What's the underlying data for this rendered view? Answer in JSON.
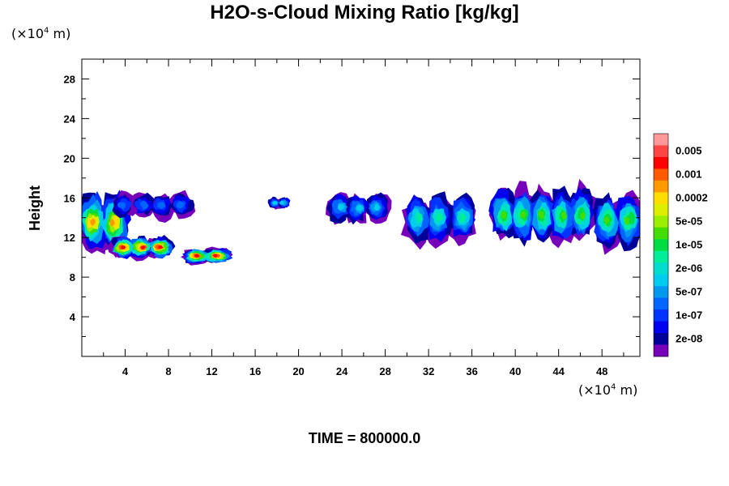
{
  "title": "H2O-s-Cloud Mixing Ratio [kg/kg]",
  "time_label": "TIME = 800000.0",
  "unit_prefix": "(×10",
  "unit_exp": "4",
  "unit_suffix": " m)",
  "chart_data": {
    "type": "heatmap",
    "title": "H2O-s-Cloud Mixing Ratio [kg/kg]",
    "xlabel": "",
    "ylabel": "Height",
    "x_unit": "(×10^4 m)",
    "y_unit": "(×10^4 m)",
    "xlim": [
      0,
      51.5
    ],
    "ylim": [
      0,
      30
    ],
    "x_ticks": [
      4,
      8,
      12,
      16,
      20,
      24,
      28,
      32,
      36,
      40,
      44,
      48
    ],
    "y_ticks": [
      4,
      8,
      12,
      16,
      20,
      24,
      28
    ],
    "grid": false,
    "colorbar": {
      "labels": [
        "0.005",
        "0.001",
        "0.0002",
        "5e-05",
        "1e-05",
        "2e-06",
        "5e-07",
        "1e-07",
        "2e-08"
      ],
      "colors_top_to_bottom": [
        "#ff9999",
        "#ff4444",
        "#ff0000",
        "#ff5a00",
        "#ff9900",
        "#ffdd00",
        "#ddee00",
        "#99ee00",
        "#44dd00",
        "#00dd44",
        "#00ee99",
        "#00ddcc",
        "#00ccee",
        "#0099ee",
        "#0066ff",
        "#0033ff",
        "#0000ee",
        "#000099",
        "#7700bb"
      ]
    },
    "cloud_regions": [
      {
        "x_start": 0.0,
        "x_end": 4.0,
        "y_low": 10.5,
        "y_high": 16.5,
        "peak_level": "0.0002"
      },
      {
        "x_start": 3.0,
        "x_end": 8.0,
        "y_low": 10.0,
        "y_high": 12.0,
        "peak_level": "0.001"
      },
      {
        "x_start": 9.5,
        "x_end": 13.5,
        "y_low": 9.5,
        "y_high": 10.8,
        "peak_level": "0.001"
      },
      {
        "x_start": 3.0,
        "x_end": 10.0,
        "y_low": 14.0,
        "y_high": 16.5,
        "peak_level": "1e-07"
      },
      {
        "x_start": 17.5,
        "x_end": 19.0,
        "y_low": 15.0,
        "y_high": 16.0,
        "peak_level": "5e-07"
      },
      {
        "x_start": 23.0,
        "x_end": 28.0,
        "y_low": 13.5,
        "y_high": 16.5,
        "peak_level": "5e-07"
      },
      {
        "x_start": 30.0,
        "x_end": 36.0,
        "y_low": 11.5,
        "y_high": 16.5,
        "peak_level": "2e-06"
      },
      {
        "x_start": 38.0,
        "x_end": 47.0,
        "y_low": 11.5,
        "y_high": 17.0,
        "peak_level": "1e-05"
      },
      {
        "x_start": 47.5,
        "x_end": 51.5,
        "y_low": 11.0,
        "y_high": 16.5,
        "peak_level": "1e-05"
      }
    ]
  }
}
